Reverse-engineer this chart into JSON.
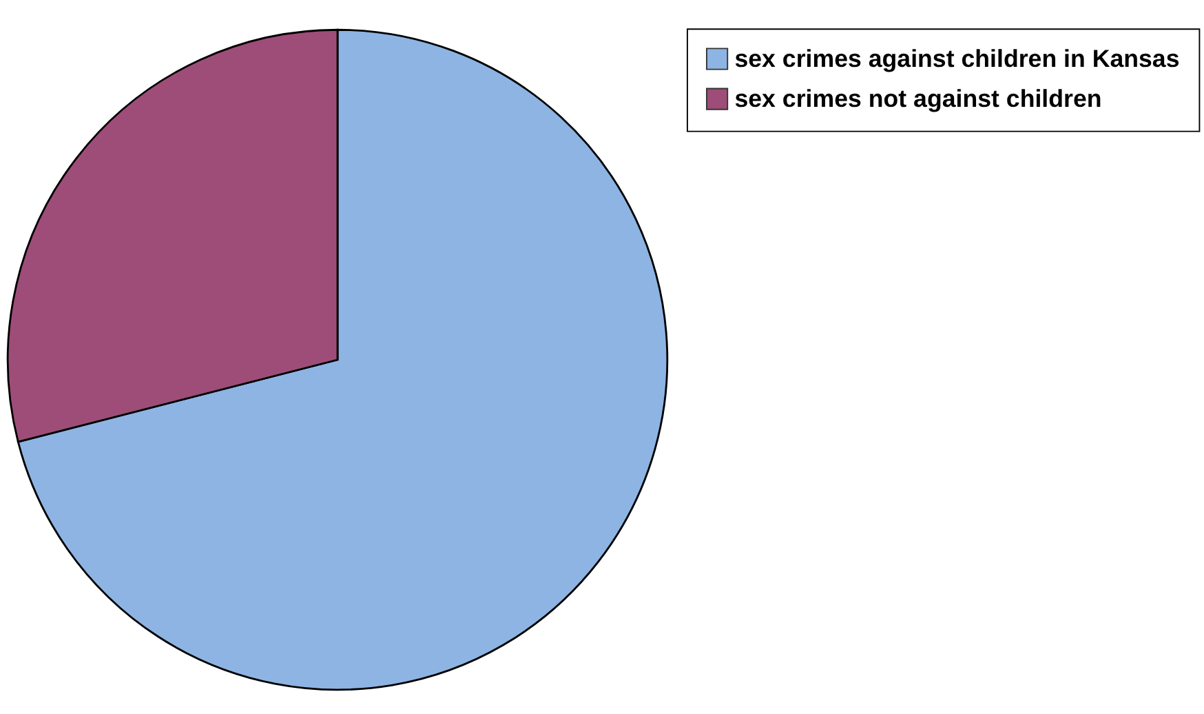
{
  "chart_data": {
    "type": "pie",
    "categories": [
      "sex crimes against children in Kansas",
      "sex crimes not against children"
    ],
    "values": [
      71,
      29
    ],
    "colors": [
      "#8db4e3",
      "#9e4d78"
    ],
    "legend": "right"
  }
}
